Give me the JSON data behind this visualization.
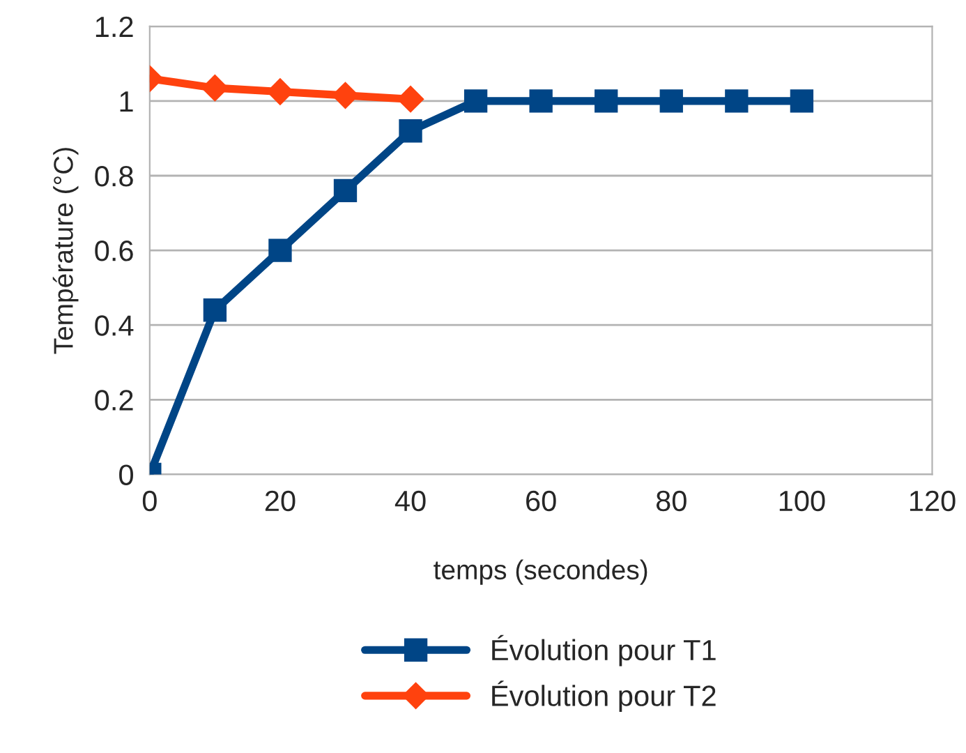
{
  "chart_data": {
    "type": "line",
    "xlabel": "temps (secondes)",
    "ylabel": "Température (°C)",
    "x": [
      0,
      10,
      20,
      30,
      40,
      50,
      60,
      70,
      80,
      90,
      100
    ],
    "series": [
      {
        "name": "Évolution pour T1",
        "color": "#004586",
        "marker": "square",
        "values": [
          0,
          0.44,
          0.6,
          0.76,
          0.92,
          1,
          1,
          1,
          1,
          1,
          1
        ]
      },
      {
        "name": "Évolution pour T2",
        "color": "#ff420e",
        "marker": "diamond",
        "values": [
          1.06,
          1.035,
          1.025,
          1.015,
          1.005,
          null,
          null,
          null,
          null,
          null,
          null
        ]
      }
    ],
    "xlim": [
      0,
      120
    ],
    "xticks": [
      0,
      20,
      40,
      60,
      80,
      100,
      120
    ],
    "ylim": [
      0,
      1.2
    ],
    "yticks": [
      0,
      0.2,
      0.4,
      0.6,
      0.8,
      1,
      1.2
    ],
    "grid": "y",
    "legend": "bottom",
    "line_style": "solid"
  }
}
